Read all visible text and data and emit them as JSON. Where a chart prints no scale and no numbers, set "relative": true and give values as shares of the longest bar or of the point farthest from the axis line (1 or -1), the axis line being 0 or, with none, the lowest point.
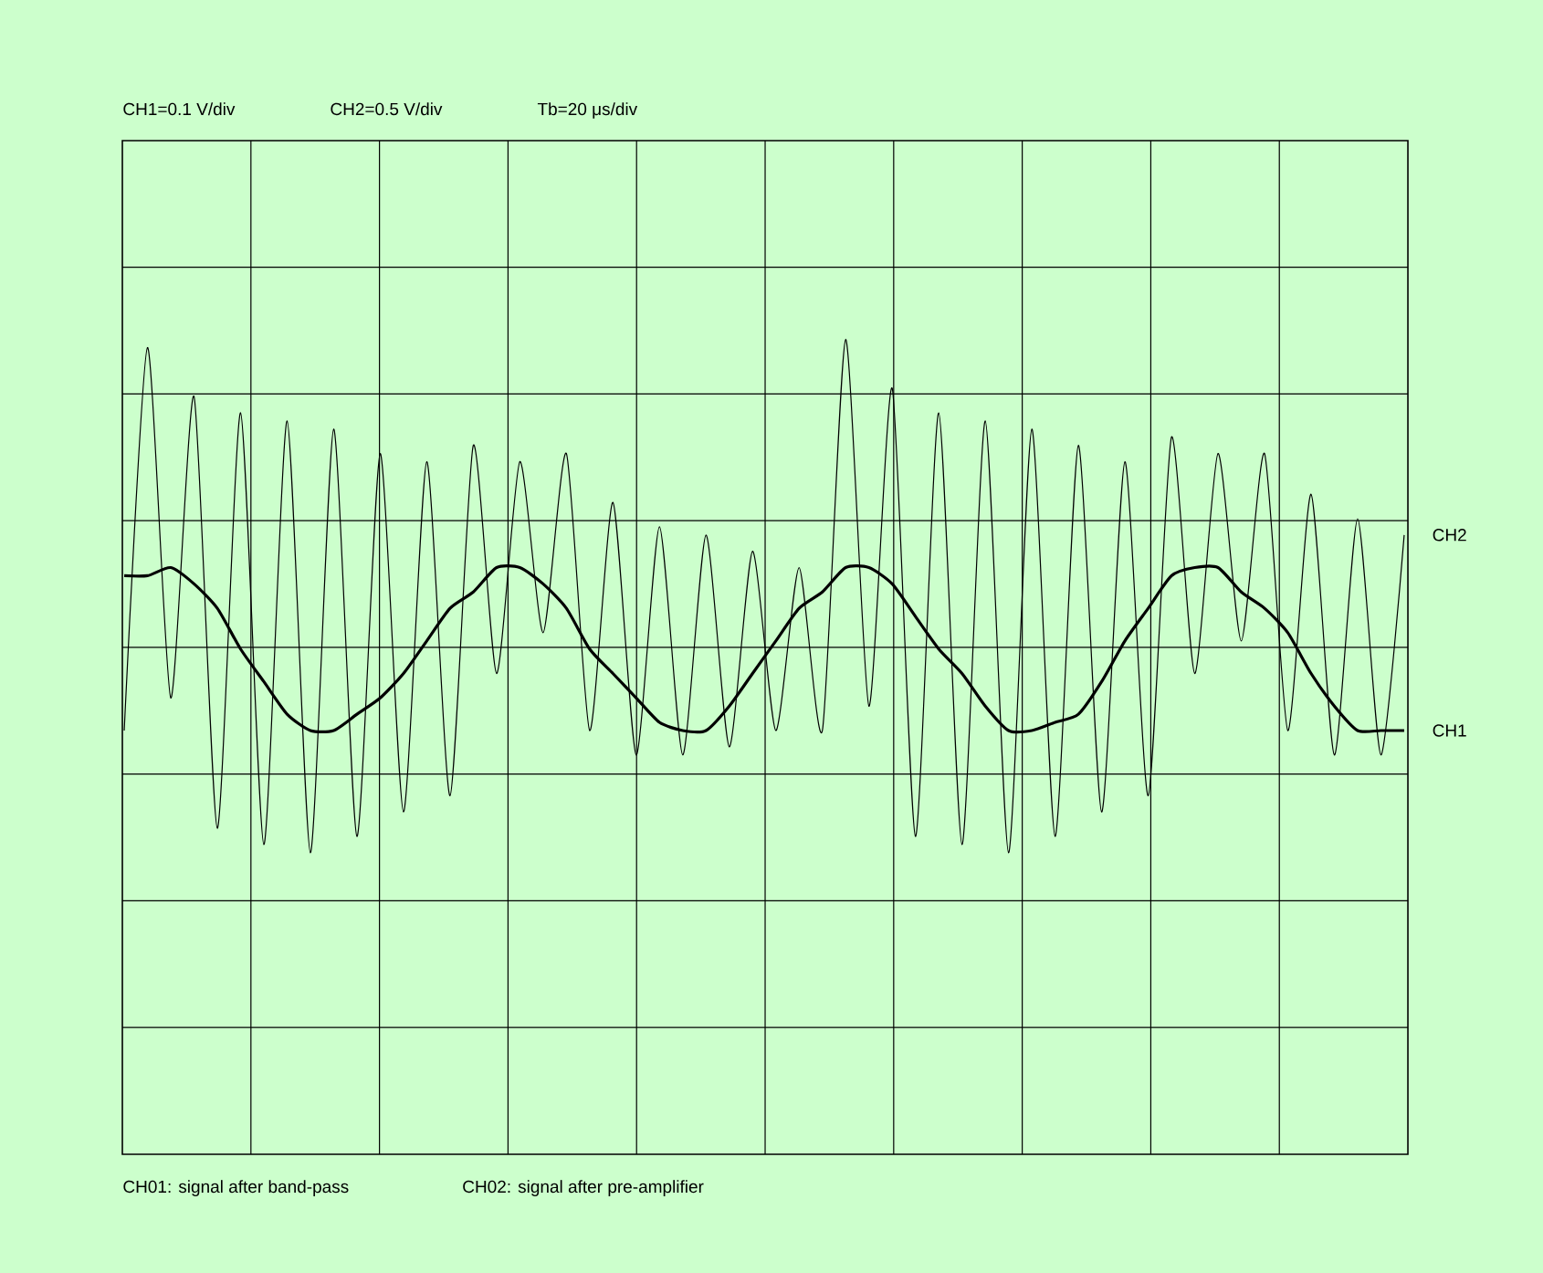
{
  "chart_data": {
    "type": "line",
    "relative": true,
    "grid": true,
    "annotations": [
      "CH1=0.1 V/div",
      "CH2=0.5 V/div",
      "Tb=20 μs/div",
      "CH01: signal after band-pass",
      "CH02: signal after pre-amplifier"
    ],
    "categories": [
      null,
      null,
      null,
      null,
      null,
      null,
      null,
      null,
      null,
      null,
      null,
      null,
      null,
      null,
      null,
      null,
      null,
      null,
      null,
      null,
      null,
      null,
      null,
      null,
      null,
      null,
      null,
      null,
      null,
      null,
      null,
      null,
      null,
      null,
      null,
      null,
      null,
      null,
      null,
      null,
      null,
      null,
      null,
      null,
      null,
      null,
      null,
      null,
      null,
      null,
      null,
      null,
      null,
      null,
      null,
      null
    ],
    "series": [
      {
        "name": "CH2",
        "color": "#000000",
        "values": [
          0.52,
          0.99,
          0.56,
          0.93,
          0.4,
          0.91,
          0.38,
          0.9,
          0.37,
          0.89,
          0.39,
          0.86,
          0.42,
          0.85,
          0.44,
          0.87,
          0.59,
          0.85,
          0.64,
          0.86,
          0.52,
          0.8,
          0.49,
          0.77,
          0.49,
          0.76,
          0.5,
          0.74,
          0.52,
          0.72,
          0.52,
          1.0,
          0.55,
          0.94,
          0.39,
          0.91,
          0.38,
          0.9,
          0.37,
          0.89,
          0.39,
          0.87,
          0.42,
          0.85,
          0.44,
          0.88,
          0.59,
          0.86,
          0.63,
          0.86,
          0.52,
          0.81,
          0.49,
          0.78,
          0.49,
          0.76
        ]
      },
      {
        "name": "CH1",
        "color": "#000000",
        "values": [
          0.71,
          0.71,
          0.72,
          0.7,
          0.67,
          0.62,
          0.58,
          0.54,
          0.52,
          0.52,
          0.54,
          0.56,
          0.59,
          0.63,
          0.67,
          0.69,
          0.72,
          0.72,
          0.7,
          0.67,
          0.62,
          0.59,
          0.56,
          0.53,
          0.52,
          0.52,
          0.55,
          0.59,
          0.63,
          0.67,
          0.69,
          0.72,
          0.72,
          0.7,
          0.66,
          0.62,
          0.59,
          0.55,
          0.52,
          0.52,
          0.53,
          0.54,
          0.58,
          0.63,
          0.67,
          0.71,
          0.72,
          0.72,
          0.69,
          0.67,
          0.64,
          0.59,
          0.55,
          0.52,
          0.52,
          0.52
        ]
      }
    ]
  }
}
